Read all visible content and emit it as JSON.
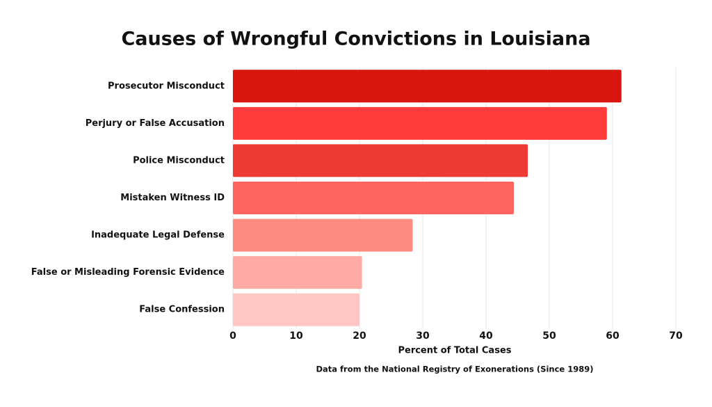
{
  "chart_data": {
    "type": "bar",
    "orientation": "horizontal",
    "title": "Causes of Wrongful Convictions in Louisiana",
    "xlabel": "Percent of Total Cases",
    "note": "Data from the National Registry of Exonerations (Since 1989)",
    "categories": [
      "Prosecutor Misconduct",
      "Perjury or False Accusation",
      "Police Misconduct",
      "Mistaken Witness ID",
      "Inadequate Legal Defense",
      "False or Misleading Forensic Evidence",
      "False Confession"
    ],
    "values": [
      61.4,
      59.1,
      46.6,
      44.4,
      28.4,
      20.4,
      20.0
    ],
    "colors": [
      "#d9160e",
      "#ff3b3b",
      "#ee3a35",
      "#ff6560",
      "#ff8a80",
      "#ffaaa5",
      "#ffc6c3"
    ],
    "xlim": [
      0,
      70
    ],
    "xticks": [
      0,
      10,
      20,
      30,
      40,
      50,
      60,
      70
    ],
    "grid": true
  }
}
